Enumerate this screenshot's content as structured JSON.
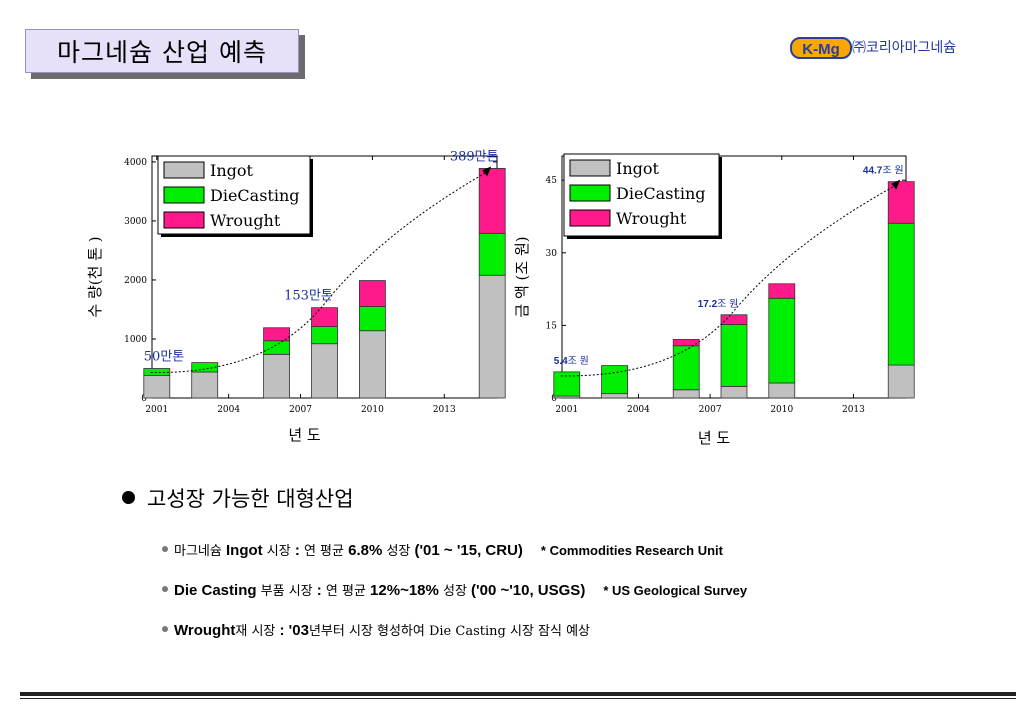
{
  "header": {
    "title": "마그네슘 산업 예측",
    "company": "㈜코리아마그네슘",
    "logo_text": "K-Mg"
  },
  "colors": {
    "ingot": "#c0c0c0",
    "diecasting": "#00ee00",
    "wrought": "#ff1a8c"
  },
  "chart_data": [
    {
      "type": "bar",
      "stacked": true,
      "xlabel": "년  도",
      "ylabel": "수 량(천 톤 )",
      "ylim": [
        0,
        4100
      ],
      "xlim": [
        2000.8,
        2015.2
      ],
      "xticks": [
        2001,
        2004,
        2007,
        2010,
        2013
      ],
      "yticks": [
        0,
        1000,
        2000,
        3000,
        4000
      ],
      "legend": "top-left",
      "x": [
        2001,
        2003,
        2006,
        2008,
        2010,
        2015
      ],
      "series": [
        {
          "name": "Ingot",
          "values": [
            380,
            440,
            740,
            920,
            1140,
            2080
          ]
        },
        {
          "name": "DieCasting",
          "values": [
            120,
            160,
            230,
            290,
            410,
            710
          ]
        },
        {
          "name": "Wrought",
          "values": [
            0,
            0,
            220,
            320,
            440,
            1100
          ]
        }
      ],
      "annotations": [
        {
          "x": 2001,
          "value": 500,
          "label": "50만톤"
        },
        {
          "x": 2008,
          "value": 1530,
          "label": "153만톤"
        },
        {
          "x": 2015,
          "value": 3890,
          "label": "389만톤"
        }
      ]
    },
    {
      "type": "bar",
      "stacked": true,
      "xlabel": "년 도",
      "ylabel": "금  액 (조 원)",
      "ylim": [
        0,
        50
      ],
      "xlim": [
        2000.8,
        2015.2
      ],
      "xticks": [
        2001,
        2004,
        2007,
        2010,
        2013
      ],
      "yticks": [
        0,
        15,
        30,
        45
      ],
      "legend": "top-left",
      "x": [
        2001,
        2003,
        2006,
        2008,
        2010,
        2015
      ],
      "series": [
        {
          "name": "Ingot",
          "values": [
            0.4,
            0.9,
            1.7,
            2.4,
            3.1,
            6.8
          ]
        },
        {
          "name": "DieCasting",
          "values": [
            5.0,
            5.8,
            9.1,
            12.8,
            17.5,
            29.3
          ]
        },
        {
          "name": "Wrought",
          "values": [
            0,
            0,
            1.3,
            2.0,
            3.0,
            8.6
          ]
        }
      ],
      "annotations": [
        {
          "x": 2001,
          "value": 5.4,
          "label_num": "5.4",
          "label_unit": "조 원"
        },
        {
          "x": 2008,
          "value": 17.2,
          "label_num": "17.2",
          "label_unit": "조 원"
        },
        {
          "x": 2015,
          "value": 44.7,
          "label_num": "44.7",
          "label_unit": "조 원"
        }
      ]
    }
  ],
  "bullets": {
    "main": "고성장 가능한 대형산업",
    "items": [
      {
        "p1": "마그네슘 ",
        "b1": "Ingot",
        "p2": " 시장 ",
        "b2": ":",
        "p3": " 연 평균 ",
        "b3": "6.8%",
        "p4": " 성장 ",
        "b4": "('01 ~ '15, CRU)",
        "note": "* Commodities Research Unit"
      },
      {
        "p1": "",
        "b1": "Die Casting",
        "p2": " 부품 시장 ",
        "b2": ":",
        "p3": " 연 평균 ",
        "b3": "12%~18%",
        "p4": " 성장 ",
        "b4": "('00 ~'10, USGS)",
        "note": "* US Geological Survey"
      },
      {
        "p1": "",
        "b1": "Wrought",
        "p2": "재 시장 ",
        "b2": ":",
        "p3": " ",
        "b3": "'03",
        "p4": "년부터 시장 형성하여 Die Casting 시장 잠식 예상",
        "b4": "",
        "note": ""
      }
    ]
  }
}
